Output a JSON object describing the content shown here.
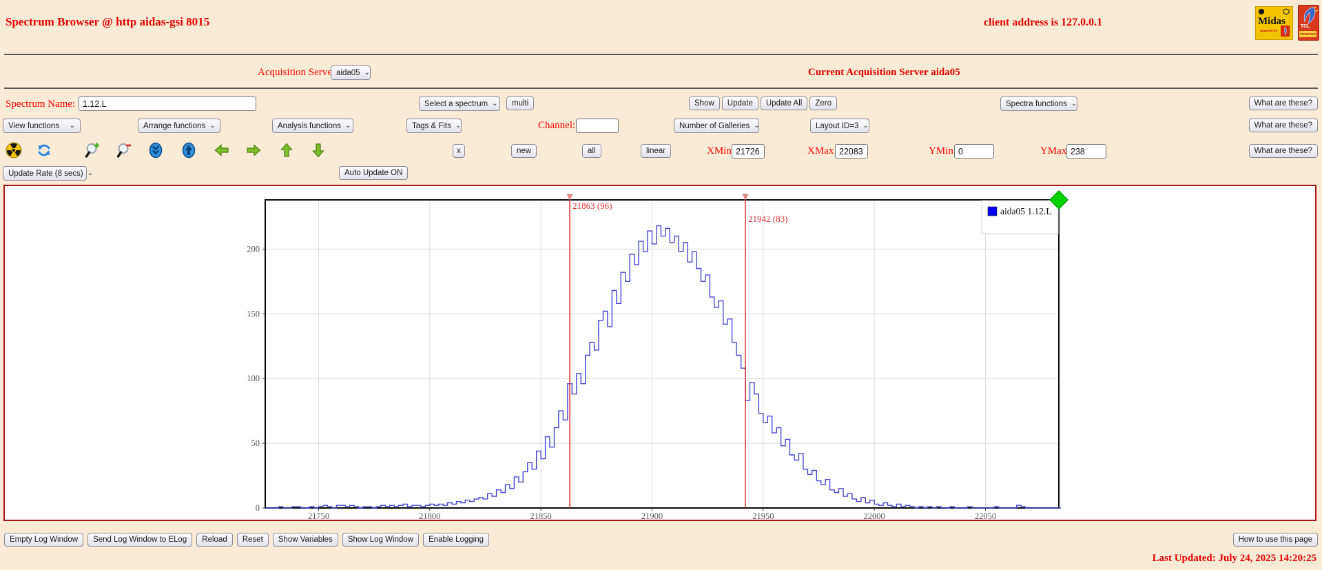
{
  "header": {
    "title": "Spectrum Browser @ http aidas-gsi 8015",
    "client_address": "client address is 127.0.0.1",
    "midas_logo_text": "Midas",
    "midas_powered": "powered by",
    "tcl_logo_text": "TCL",
    "tcl_powered": "POWERED"
  },
  "server_row": {
    "label": "Acquisition Servers",
    "server_selected": "aida05",
    "current": "Current Acquisition Server aida05"
  },
  "spectrum_row": {
    "name_label": "Spectrum Name:",
    "name_value": "1.12.L",
    "select_placeholder": "Select a spectrum",
    "multi": "multi",
    "show": "Show",
    "update": "Update",
    "update_all": "Update All",
    "zero": "Zero",
    "spectra_functions": "Spectra functions"
  },
  "functions_row": {
    "view": "View functions",
    "arrange": "Arrange functions",
    "analysis": "Analysis functions",
    "tags": "Tags & Fits",
    "channel_label": "Channel:",
    "channel_value": "",
    "galleries": "Number of Galleries",
    "layout": "Layout ID=3"
  },
  "toolbar": {
    "x": "x",
    "new": "new",
    "all": "all",
    "linear": "linear",
    "xmin_label": "XMin",
    "xmin": "21726",
    "xmax_label": "XMax",
    "xmax": "22083",
    "ymin_label": "YMin",
    "ymin": "0",
    "ymax_label": "YMax",
    "ymax": "238",
    "icons": [
      "radiation",
      "refresh",
      "zoom-in",
      "zoom-out",
      "scroll-down",
      "scroll-up",
      "arrow-left",
      "arrow-right",
      "arrow-up",
      "arrow-down"
    ]
  },
  "update_row": {
    "rate": "Update Rate (8 secs)",
    "auto": "Auto Update ON"
  },
  "what_are_these": "What are these?",
  "chart_data": {
    "type": "line",
    "style": "histogram-step",
    "legend": "aida05 1.12.L",
    "series_color": "#4545d8",
    "marker_color": "#e03030",
    "grid": true,
    "legend_position": "top-right",
    "xlim": [
      21726,
      22083
    ],
    "ylim": [
      0,
      238
    ],
    "x_ticks": [
      21750,
      21800,
      21850,
      21900,
      21950,
      22000,
      22050
    ],
    "y_ticks": [
      0,
      50,
      100,
      150,
      200
    ],
    "bin_start": 21726,
    "bin_width": 2,
    "counts": [
      0,
      0,
      0,
      1,
      0,
      0,
      1,
      1,
      0,
      0,
      1,
      0,
      1,
      2,
      1,
      0,
      2,
      2,
      1,
      2,
      1,
      0,
      1,
      1,
      0,
      1,
      2,
      1,
      2,
      1,
      2,
      3,
      1,
      2,
      2,
      1,
      2,
      3,
      2,
      3,
      2,
      4,
      3,
      5,
      4,
      6,
      5,
      7,
      8,
      7,
      11,
      9,
      14,
      12,
      18,
      15,
      24,
      20,
      28,
      35,
      30,
      44,
      38,
      55,
      47,
      62,
      75,
      68,
      96,
      88,
      104,
      96,
      118,
      128,
      122,
      145,
      152,
      140,
      168,
      158,
      182,
      175,
      196,
      188,
      206,
      198,
      214,
      204,
      218,
      210,
      216,
      205,
      210,
      198,
      205,
      190,
      198,
      185,
      175,
      180,
      163,
      155,
      160,
      142,
      146,
      128,
      118,
      108,
      83,
      97,
      88,
      73,
      66,
      71,
      58,
      62,
      48,
      53,
      41,
      37,
      42,
      30,
      26,
      29,
      21,
      18,
      22,
      14,
      12,
      15,
      9,
      11,
      7,
      5,
      8,
      4,
      6,
      3,
      2,
      4,
      2,
      1,
      3,
      1,
      2,
      1,
      0,
      1,
      0,
      1,
      0,
      1,
      0,
      0,
      1,
      0,
      0,
      0,
      1,
      0,
      0,
      0,
      0,
      0,
      1,
      0,
      0,
      0,
      0,
      2,
      1,
      0,
      0,
      0,
      0,
      0,
      0,
      0,
      0
    ],
    "markers": [
      {
        "x": 21863,
        "count": 96,
        "label": "21863 (96)"
      },
      {
        "x": 21942,
        "count": 83,
        "label": "21942 (83)"
      }
    ],
    "status_diamond_color": "#00d400"
  },
  "footer": {
    "buttons": [
      "Empty Log Window",
      "Send Log Window to ELog",
      "Reload",
      "Reset",
      "Show Variables",
      "Show Log Window",
      "Enable Logging"
    ],
    "help": "How to use this page",
    "last_updated": "Last Updated: July 24, 2025 14:20:25"
  }
}
